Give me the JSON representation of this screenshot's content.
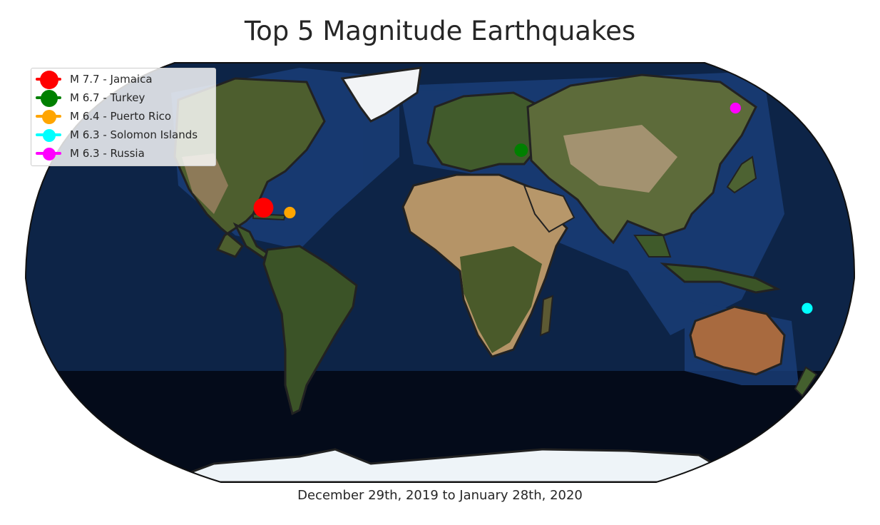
{
  "title": "Top 5 Magnitude Earthquakes",
  "subtitle": "December 29th, 2019 to January 28th, 2020",
  "map": {
    "projection": "Robinson",
    "background": "satellite imagery with country borders"
  },
  "earthquakes": [
    {
      "label": "M 7.7 - Jamaica",
      "magnitude": 7.7,
      "place": "Jamaica",
      "lat": 19.4,
      "lon": -78.8,
      "color": "#ff0000"
    },
    {
      "label": "M 6.7 - Turkey",
      "magnitude": 6.7,
      "place": "Turkey",
      "lat": 38.4,
      "lon": 39.1,
      "color": "#008000"
    },
    {
      "label": "M 6.4 - Puerto Rico",
      "magnitude": 6.4,
      "place": "Puerto Rico",
      "lat": 17.9,
      "lon": -66.8,
      "color": "#ffa500"
    },
    {
      "label": "M 6.3 - Solomon Islands",
      "magnitude": 6.3,
      "place": "Solomon Islands",
      "lat": -10.6,
      "lon": 161.0,
      "color": "#00ffff"
    },
    {
      "label": "M 6.3 - Russia",
      "magnitude": 6.3,
      "place": "Russia",
      "lat": 55.5,
      "lon": 160.4,
      "color": "#ff00ff"
    }
  ],
  "legend": {
    "position": "top-left"
  }
}
